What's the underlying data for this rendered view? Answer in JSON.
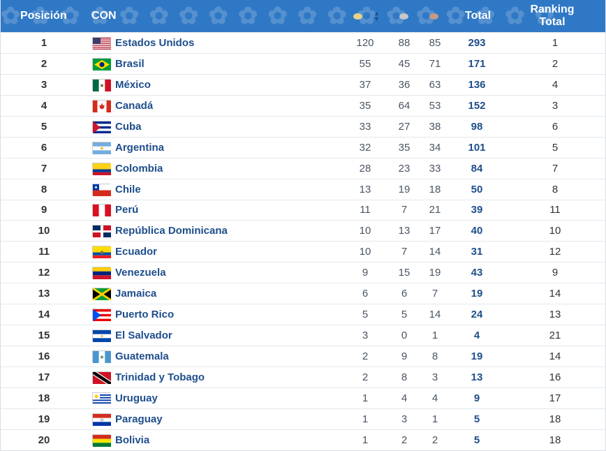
{
  "header": {
    "position": "Posición",
    "country": "CON",
    "total": "Total",
    "ranking": "Ranking Total"
  },
  "colors": {
    "header_bg": "#2f78c5",
    "gold": "#e8d38a",
    "silver": "#c8c8c8",
    "bronze": "#c69a86",
    "link": "#1e4e8c"
  },
  "rows": [
    {
      "pos": "1",
      "name": "Estados Unidos",
      "flag": "flag-usa",
      "gold": "120",
      "silver": "88",
      "bronze": "85",
      "total": "293",
      "rank": "1"
    },
    {
      "pos": "2",
      "name": "Brasil",
      "flag": "flag-brazil",
      "gold": "55",
      "silver": "45",
      "bronze": "71",
      "total": "171",
      "rank": "2"
    },
    {
      "pos": "3",
      "name": "México",
      "flag": "flag-mexico",
      "gold": "37",
      "silver": "36",
      "bronze": "63",
      "total": "136",
      "rank": "4"
    },
    {
      "pos": "4",
      "name": "Canadá",
      "flag": "flag-canada",
      "gold": "35",
      "silver": "64",
      "bronze": "53",
      "total": "152",
      "rank": "3"
    },
    {
      "pos": "5",
      "name": "Cuba",
      "flag": "flag-cuba",
      "gold": "33",
      "silver": "27",
      "bronze": "38",
      "total": "98",
      "rank": "6"
    },
    {
      "pos": "6",
      "name": "Argentina",
      "flag": "flag-argentina",
      "gold": "32",
      "silver": "35",
      "bronze": "34",
      "total": "101",
      "rank": "5"
    },
    {
      "pos": "7",
      "name": "Colombia",
      "flag": "flag-colombia",
      "gold": "28",
      "silver": "23",
      "bronze": "33",
      "total": "84",
      "rank": "7"
    },
    {
      "pos": "8",
      "name": "Chile",
      "flag": "flag-chile",
      "gold": "13",
      "silver": "19",
      "bronze": "18",
      "total": "50",
      "rank": "8"
    },
    {
      "pos": "9",
      "name": "Perú",
      "flag": "flag-peru",
      "gold": "11",
      "silver": "7",
      "bronze": "21",
      "total": "39",
      "rank": "11"
    },
    {
      "pos": "10",
      "name": "República Dominicana",
      "flag": "flag-dominican-republic",
      "gold": "10",
      "silver": "13",
      "bronze": "17",
      "total": "40",
      "rank": "10"
    },
    {
      "pos": "11",
      "name": "Ecuador",
      "flag": "flag-ecuador",
      "gold": "10",
      "silver": "7",
      "bronze": "14",
      "total": "31",
      "rank": "12"
    },
    {
      "pos": "12",
      "name": "Venezuela",
      "flag": "flag-venezuela",
      "gold": "9",
      "silver": "15",
      "bronze": "19",
      "total": "43",
      "rank": "9"
    },
    {
      "pos": "13",
      "name": "Jamaica",
      "flag": "flag-jamaica",
      "gold": "6",
      "silver": "6",
      "bronze": "7",
      "total": "19",
      "rank": "14"
    },
    {
      "pos": "14",
      "name": "Puerto Rico",
      "flag": "flag-puerto-rico",
      "gold": "5",
      "silver": "5",
      "bronze": "14",
      "total": "24",
      "rank": "13"
    },
    {
      "pos": "15",
      "name": "El Salvador",
      "flag": "flag-el-salvador",
      "gold": "3",
      "silver": "0",
      "bronze": "1",
      "total": "4",
      "rank": "21"
    },
    {
      "pos": "16",
      "name": "Guatemala",
      "flag": "flag-guatemala",
      "gold": "2",
      "silver": "9",
      "bronze": "8",
      "total": "19",
      "rank": "14"
    },
    {
      "pos": "17",
      "name": "Trinidad y Tobago",
      "flag": "flag-trinidad-tobago",
      "gold": "2",
      "silver": "8",
      "bronze": "3",
      "total": "13",
      "rank": "16"
    },
    {
      "pos": "18",
      "name": "Uruguay",
      "flag": "flag-uruguay",
      "gold": "1",
      "silver": "4",
      "bronze": "4",
      "total": "9",
      "rank": "17"
    },
    {
      "pos": "19",
      "name": "Paraguay",
      "flag": "flag-paraguay",
      "gold": "1",
      "silver": "3",
      "bronze": "1",
      "total": "5",
      "rank": "18"
    },
    {
      "pos": "20",
      "name": "Bolivia",
      "flag": "flag-bolivia",
      "gold": "1",
      "silver": "2",
      "bronze": "2",
      "total": "5",
      "rank": "18"
    }
  ]
}
